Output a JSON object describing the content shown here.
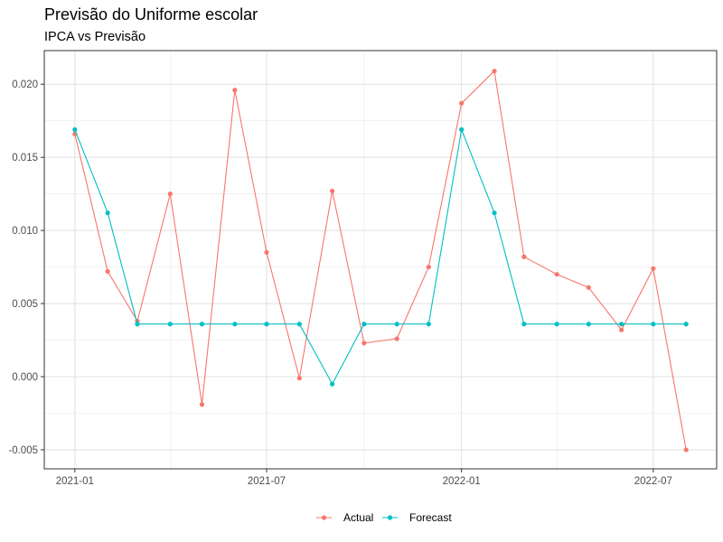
{
  "chart_data": {
    "type": "line",
    "title": "Previsão do Uniforme escolar",
    "subtitle": "IPCA vs Previsão",
    "xlabel": "",
    "ylabel": "",
    "x": [
      "2021-01",
      "2021-02",
      "2021-03",
      "2021-04",
      "2021-05",
      "2021-06",
      "2021-07",
      "2021-08",
      "2021-09",
      "2021-10",
      "2021-11",
      "2021-12",
      "2022-01",
      "2022-02",
      "2022-03",
      "2022-04",
      "2022-05",
      "2022-06",
      "2022-07",
      "2022-08"
    ],
    "x_tick_labels": [
      "2021-01",
      "2021-07",
      "2022-01",
      "2022-07"
    ],
    "x_tick_positions": [
      "2021-01",
      "2021-07",
      "2022-01",
      "2022-07"
    ],
    "y_tick_labels": [
      "-0.005",
      "0.000",
      "0.005",
      "0.010",
      "0.015",
      "0.020"
    ],
    "y_tick_values": [
      -0.005,
      0.0,
      0.005,
      0.01,
      0.015,
      0.02
    ],
    "ylim": [
      -0.0063,
      0.0223
    ],
    "grid": true,
    "legend_position": "bottom",
    "series": [
      {
        "name": "Actual",
        "color": "#F8766D",
        "values": [
          0.0166,
          0.0072,
          0.0038,
          0.0125,
          -0.0019,
          0.0196,
          0.0085,
          -0.0001,
          0.0127,
          0.0023,
          0.0026,
          0.0075,
          0.0187,
          0.0209,
          0.0082,
          0.007,
          0.0061,
          0.0032,
          0.0074,
          -0.005
        ]
      },
      {
        "name": "Forecast",
        "color": "#00BFC4",
        "values": [
          0.0169,
          0.0112,
          0.0036,
          0.0036,
          0.0036,
          0.0036,
          0.0036,
          0.0036,
          -0.0005,
          0.0036,
          0.0036,
          0.0036,
          0.0169,
          0.0112,
          0.0036,
          0.0036,
          0.0036,
          0.0036,
          0.0036,
          0.0036
        ]
      }
    ]
  }
}
